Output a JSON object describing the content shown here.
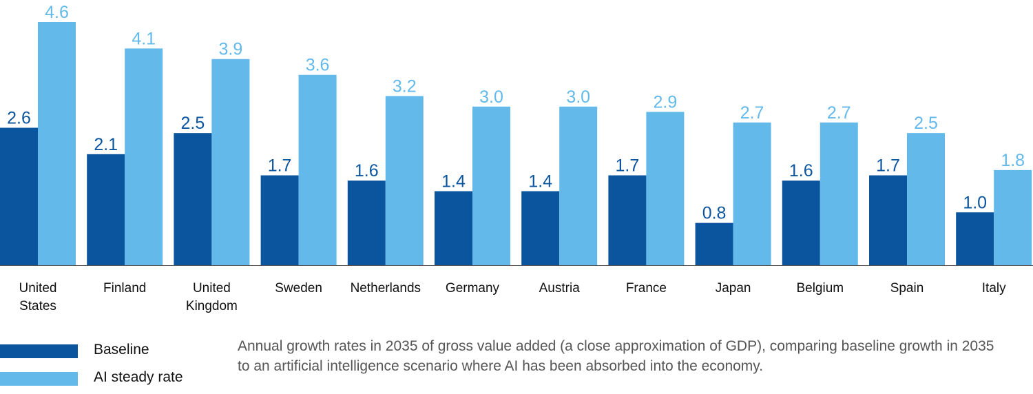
{
  "chart_data": {
    "type": "bar",
    "categories": [
      "United States",
      "Finland",
      "United Kingdom",
      "Sweden",
      "Netherlands",
      "Germany",
      "Austria",
      "France",
      "Japan",
      "Belgium",
      "Spain",
      "Italy"
    ],
    "category_lines": [
      [
        "United",
        "States"
      ],
      [
        "Finland"
      ],
      [
        "United",
        "Kingdom"
      ],
      [
        "Sweden"
      ],
      [
        "Netherlands"
      ],
      [
        "Germany"
      ],
      [
        "Austria"
      ],
      [
        "France"
      ],
      [
        "Japan"
      ],
      [
        "Belgium"
      ],
      [
        "Spain"
      ],
      [
        "Italy"
      ]
    ],
    "series": [
      {
        "name": "Baseline",
        "color": "#0b559f",
        "values": [
          2.6,
          2.1,
          2.5,
          1.7,
          1.6,
          1.4,
          1.4,
          1.7,
          0.8,
          1.6,
          1.7,
          1.0
        ]
      },
      {
        "name": "AI steady rate",
        "color": "#62b9ea",
        "values": [
          4.6,
          4.1,
          3.9,
          3.6,
          3.2,
          3.0,
          3.0,
          2.9,
          2.7,
          2.7,
          2.5,
          1.8
        ]
      }
    ],
    "data_labels": [
      [
        "2.6",
        "2.1",
        "2.5",
        "1.7",
        "1.6",
        "1.4",
        "1.4",
        "1.7",
        "0.8",
        "1.6",
        "1.7",
        "1.0"
      ],
      [
        "4.6",
        "4.1",
        "3.9",
        "3.6",
        "3.2",
        "3.0",
        "3.0",
        "2.9",
        "2.7",
        "2.7",
        "2.5",
        "1.8"
      ]
    ],
    "ylim": [
      0,
      4.6
    ],
    "grid": false,
    "legend_position": "bottom-left"
  },
  "caption": "Annual growth rates in 2035 of gross value added (a close approximation of GDP), comparing baseline growth in 2035 to an artificial intelligence scenario where AI has been absorbed into the economy."
}
